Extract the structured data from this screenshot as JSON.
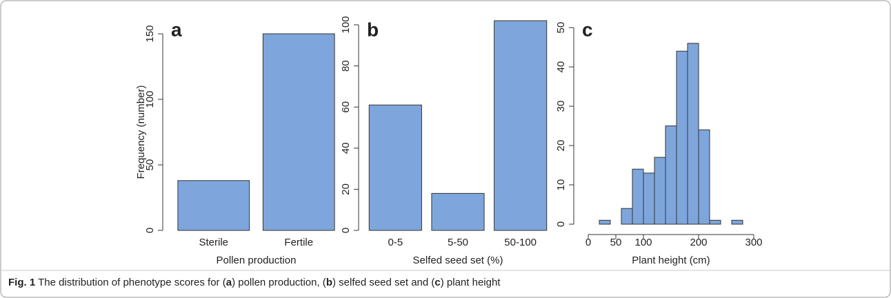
{
  "chart_data": [
    {
      "type": "bar",
      "label": "a",
      "ylabel": "Frequency (number)",
      "xlabel": "Pollen production",
      "categories": [
        "Sterile",
        "Fertile"
      ],
      "values": [
        38,
        150
      ],
      "color": "#7ea6dc",
      "ylim": [
        0,
        150
      ],
      "yticks": [
        0,
        50,
        100,
        150
      ]
    },
    {
      "type": "bar",
      "label": "b",
      "xlabel": "Selfed seed set (%)",
      "categories": [
        "0-5",
        "5-50",
        "50-100"
      ],
      "values": [
        61,
        18,
        102
      ],
      "color": "#7ea6dc",
      "ylim": [
        0,
        102
      ],
      "yticks": [
        0,
        20,
        40,
        60,
        80,
        100
      ]
    },
    {
      "type": "histogram",
      "label": "c",
      "xlabel": "Plant height (cm)",
      "bins": [
        20,
        40,
        60,
        80,
        100,
        120,
        140,
        160,
        180,
        200,
        220,
        240,
        260,
        280
      ],
      "values": [
        1,
        0,
        4,
        14,
        13,
        17,
        25,
        44,
        46,
        24,
        1,
        0,
        1
      ],
      "color": "#7ea6dc",
      "xlim": [
        0,
        300
      ],
      "xticks": [
        0,
        50,
        100,
        200,
        300
      ],
      "ylim": [
        0,
        50
      ],
      "yticks": [
        0,
        10,
        20,
        30,
        40,
        50
      ]
    }
  ],
  "caption": [
    {
      "text": "Fig. 1",
      "bold": true
    },
    {
      "text": " The distribution of phenotype scores for ("
    },
    {
      "text": "a",
      "bold": true
    },
    {
      "text": ") pollen production, ("
    },
    {
      "text": "b",
      "bold": true
    },
    {
      "text": ") selfed seed set and ("
    },
    {
      "text": "c",
      "bold": true
    },
    {
      "text": ") plant height"
    }
  ]
}
